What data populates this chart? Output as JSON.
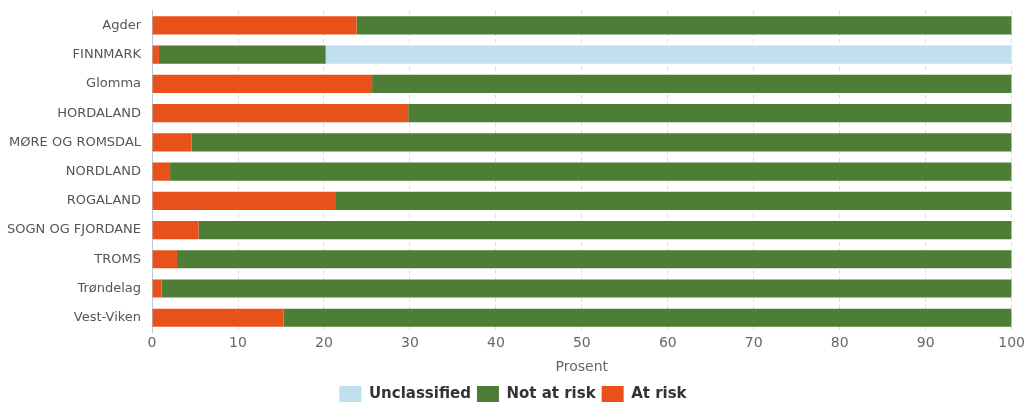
{
  "chart_data": {
    "type": "bar",
    "orientation": "horizontal",
    "stacked": true,
    "xlabel": "Prosent",
    "categories": [
      "Agder",
      "FINNMARK",
      "Glomma",
      "HORDALAND",
      "MØRE OG ROMSDAL",
      "NORDLAND",
      "ROGALAND",
      "SOGN OG FJORDANE",
      "TROMS",
      "Trøndelag",
      "Vest-Viken"
    ],
    "series": [
      {
        "name": "At risk",
        "color": "#e8521a",
        "values": [
          23.8,
          0.8,
          25.6,
          29.8,
          4.6,
          2.1,
          21.4,
          5.4,
          2.9,
          1.1,
          15.3
        ]
      },
      {
        "name": "Not at risk",
        "color": "#4e7d35",
        "values": [
          76.2,
          19.4,
          74.4,
          70.2,
          95.4,
          97.9,
          78.6,
          94.6,
          97.1,
          98.9,
          84.7
        ]
      },
      {
        "name": "Unclassified",
        "color": "#bfe0ec",
        "values": [
          0,
          79.8,
          0,
          0,
          0,
          0,
          0,
          0,
          0,
          0,
          0
        ]
      }
    ],
    "xlim": [
      0,
      100
    ],
    "xticks": [
      0,
      10,
      20,
      30,
      40,
      50,
      60,
      70,
      80,
      90,
      100
    ],
    "grid": "x",
    "legend": "bottom"
  }
}
